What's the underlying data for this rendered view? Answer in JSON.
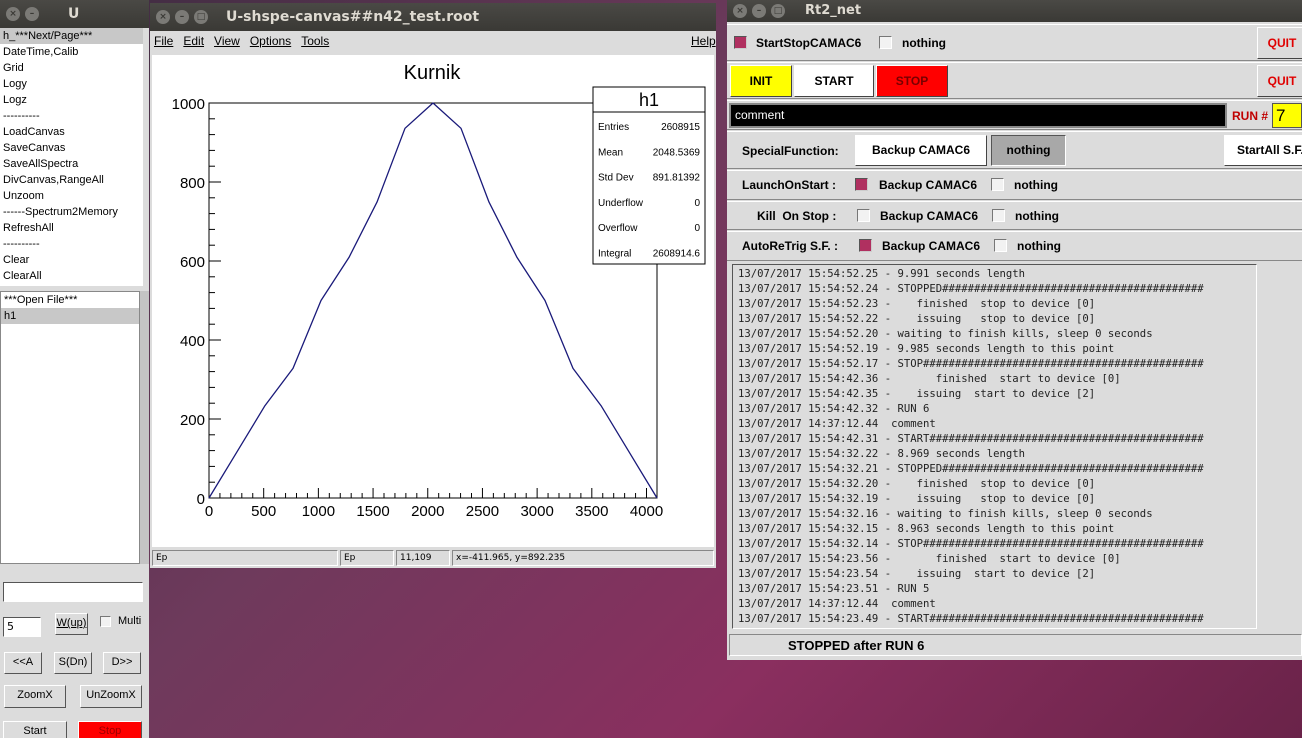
{
  "u_window": {
    "title": "U",
    "menu_items": [
      "h_***Next/Page***",
      "DateTime,Calib",
      "Grid",
      "Logy",
      "Logz",
      "----------",
      "LoadCanvas",
      "SaveCanvas",
      "SaveAllSpectra",
      "DivCanvas,RangeAll",
      "Unzoom",
      "------Spectrum2Memory",
      "RefreshAll",
      "----------",
      "Clear",
      "ClearAll"
    ],
    "file_items": [
      "***Open File***",
      "h1"
    ],
    "text_field": "",
    "number_field": "5",
    "wup_label": "W(up)",
    "multi_label": "Multi",
    "prev_label": "<<A",
    "sdn_label": "S(Dn)",
    "next_label": "D>>",
    "zoomx_label": "ZoomX",
    "unzoomx_label": "UnZoomX",
    "start_label": "Start",
    "stop_label": "Stop"
  },
  "canvas_window": {
    "title": "U-shspe-canvas##n42_test.root",
    "menu": [
      "File",
      "Edit",
      "View",
      "Options",
      "Tools"
    ],
    "help": "Help",
    "status": [
      "Ep",
      "Ep",
      "11,109",
      "x=-411.965, y=892.235"
    ]
  },
  "chart_data": {
    "type": "line",
    "title": "Kurnik",
    "xlabel": "",
    "ylabel": "",
    "xlim": [
      0,
      4096
    ],
    "ylim": [
      0,
      1000
    ],
    "xticks": [
      0,
      500,
      1000,
      1500,
      2000,
      2500,
      3000,
      3500,
      4000
    ],
    "yticks": [
      0,
      200,
      400,
      600,
      800,
      1000
    ],
    "series": [
      {
        "x": [
          0,
          256,
          512,
          768,
          1024,
          1280,
          1536,
          1792,
          2048,
          2304,
          2560,
          2816,
          3072,
          3328,
          3584,
          3840,
          4096
        ],
        "y": [
          0,
          117,
          234,
          328,
          500,
          609,
          749,
          936,
          1000,
          936,
          749,
          609,
          500,
          328,
          234,
          117,
          0
        ]
      }
    ],
    "color": "#1a1a7a",
    "stats": {
      "name": "h1",
      "rows": [
        [
          "Entries",
          "2608915"
        ],
        [
          "Mean",
          "2048.5369"
        ],
        [
          "Std Dev",
          "891.81392"
        ],
        [
          "Underflow",
          "0"
        ],
        [
          "Overflow",
          "0"
        ],
        [
          "Integral",
          "2608914.6"
        ]
      ]
    }
  },
  "rt2_window": {
    "title": "Rt2_net",
    "startstop_label": "StartStopCAMAC6",
    "nothing1_label": "nothing",
    "quit1_label": "QUIT",
    "init_label": "INIT",
    "start_label": "START",
    "stop_label": "STOP",
    "quit2_label": "QUIT",
    "comment_value": "comment",
    "run_label": "RUN #",
    "run_value": "7",
    "special_label": "SpecialFunction:",
    "backup_btn": "Backup CAMAC6",
    "nothing_btn": "nothing",
    "startall_btn": "StartAll S.F.",
    "launch_label": "LaunchOnStart :",
    "kill_label": "Kill  On Stop :",
    "autoretrig_label": "AutoReTrig S.F. :",
    "backup_label": "Backup CAMAC6",
    "nothing_label": "nothing",
    "log": [
      "13/07/2017 15:54:52.25 - 9.991 seconds length",
      "13/07/2017 15:54:52.24 - STOPPED#########################################",
      "13/07/2017 15:54:52.23 -    finished  stop to device [0]",
      "13/07/2017 15:54:52.22 -    issuing   stop to device [0]",
      "13/07/2017 15:54:52.20 - waiting to finish kills, sleep 0 seconds",
      "13/07/2017 15:54:52.19 - 9.985 seconds length to this point",
      "13/07/2017 15:54:52.17 - STOP############################################",
      "13/07/2017 15:54:42.36 -       finished  start to device [0]",
      "13/07/2017 15:54:42.35 -    issuing  start to device [2]",
      "13/07/2017 15:54:42.32 - RUN 6",
      "13/07/2017 14:37:12.44  comment",
      "13/07/2017 15:54:42.31 - START###########################################",
      "13/07/2017 15:54:32.22 - 8.969 seconds length",
      "13/07/2017 15:54:32.21 - STOPPED#########################################",
      "13/07/2017 15:54:32.20 -    finished  stop to device [0]",
      "13/07/2017 15:54:32.19 -    issuing   stop to device [0]",
      "13/07/2017 15:54:32.16 - waiting to finish kills, sleep 0 seconds",
      "13/07/2017 15:54:32.15 - 8.963 seconds length to this point",
      "13/07/2017 15:54:32.14 - STOP############################################",
      "13/07/2017 15:54:23.56 -       finished  start to device [0]",
      "13/07/2017 15:54:23.54 -    issuing  start to device [2]",
      "13/07/2017 15:54:23.51 - RUN 5",
      "13/07/2017 14:37:12.44  comment",
      "13/07/2017 15:54:23.49 - START###########################################"
    ],
    "status": "STOPPED after RUN 6"
  }
}
